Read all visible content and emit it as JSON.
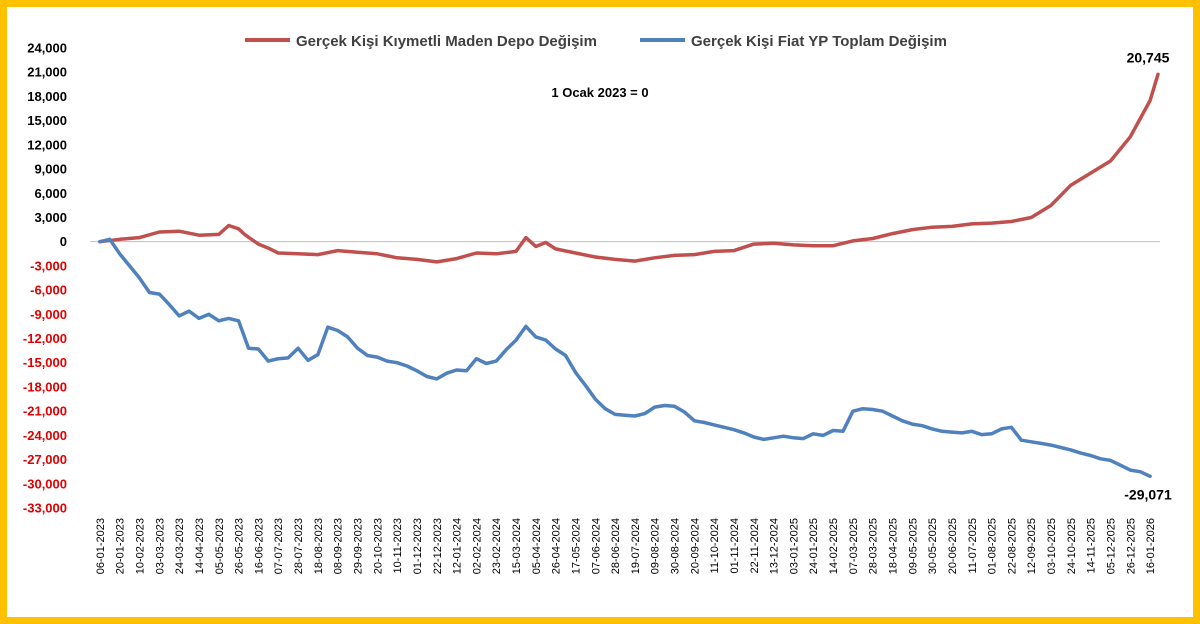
{
  "chart_data": {
    "type": "line",
    "title": "",
    "annotation": "1 Ocak 2023 = 0",
    "ylim": [
      -33000,
      24000
    ],
    "y_ticks": [
      24000,
      21000,
      18000,
      15000,
      12000,
      9000,
      6000,
      3000,
      0,
      -3000,
      -6000,
      -9000,
      -12000,
      -15000,
      -18000,
      -21000,
      -24000,
      -27000,
      -30000,
      -33000
    ],
    "y_tick_labels": [
      "24,000",
      "21,000",
      "18,000",
      "15,000",
      "12,000",
      "9,000",
      "6,000",
      "3,000",
      "0",
      "-3,000",
      "-6,000",
      "-9,000",
      "-12,000",
      "-15,000",
      "-18,000",
      "-21,000",
      "-24,000",
      "-27,000",
      "-30,000",
      "-33,000"
    ],
    "x_tick_labels": [
      "06-01-2023",
      "20-01-2023",
      "10-02-2023",
      "03-03-2023",
      "24-03-2023",
      "14-04-2023",
      "05-05-2023",
      "26-05-2023",
      "16-06-2023",
      "07-07-2023",
      "28-07-2023",
      "18-08-2023",
      "08-09-2023",
      "29-09-2023",
      "20-10-2023",
      "10-11-2023",
      "01-12-2023",
      "22-12-2023",
      "12-01-2024",
      "02-02-2024",
      "23-02-2024",
      "15-03-2024",
      "05-04-2024",
      "26-04-2024",
      "17-05-2024",
      "07-06-2024",
      "28-06-2024",
      "19-07-2024",
      "09-08-2024",
      "30-08-2024",
      "20-09-2024",
      "11-10-2024",
      "01-11-2024",
      "22-11-2024",
      "13-12-2024",
      "03-01-2025",
      "24-01-2025",
      "14-02-2025",
      "07-03-2025",
      "28-03-2025",
      "18-04-2025",
      "09-05-2025",
      "30-05-2025",
      "20-06-2025",
      "11-07-2025",
      "01-08-2025",
      "22-08-2025",
      "12-09-2025",
      "03-10-2025",
      "24-10-2025",
      "14-11-2025",
      "05-12-2025",
      "26-12-2025",
      "16-01-2026"
    ],
    "legend_position": "top",
    "series": [
      {
        "name": "Gerçek Kişi Kıymetli Maden Depo Değişim",
        "color": "#c0504d",
        "end_label": "20,745",
        "points": [
          [
            0,
            0
          ],
          [
            1,
            300
          ],
          [
            2,
            500
          ],
          [
            3,
            1200
          ],
          [
            4,
            1300
          ],
          [
            5,
            800
          ],
          [
            6,
            900
          ],
          [
            6.5,
            2000
          ],
          [
            7,
            1600
          ],
          [
            7.3,
            900
          ],
          [
            8,
            -300
          ],
          [
            8.5,
            -800
          ],
          [
            9,
            -1400
          ],
          [
            10,
            -1500
          ],
          [
            11,
            -1600
          ],
          [
            12,
            -1100
          ],
          [
            13,
            -1300
          ],
          [
            14,
            -1500
          ],
          [
            15,
            -2000
          ],
          [
            16,
            -2200
          ],
          [
            17,
            -2500
          ],
          [
            18,
            -2100
          ],
          [
            19,
            -1400
          ],
          [
            20,
            -1500
          ],
          [
            21,
            -1200
          ],
          [
            21.5,
            500
          ],
          [
            22,
            -600
          ],
          [
            22.5,
            -100
          ],
          [
            23,
            -900
          ],
          [
            24,
            -1400
          ],
          [
            25,
            -1900
          ],
          [
            26,
            -2200
          ],
          [
            27,
            -2400
          ],
          [
            28,
            -2000
          ],
          [
            29,
            -1700
          ],
          [
            30,
            -1600
          ],
          [
            31,
            -1200
          ],
          [
            32,
            -1100
          ],
          [
            33,
            -300
          ],
          [
            34,
            -200
          ],
          [
            35,
            -400
          ],
          [
            36,
            -500
          ],
          [
            37,
            -500
          ],
          [
            38,
            100
          ],
          [
            39,
            400
          ],
          [
            40,
            1000
          ],
          [
            41,
            1500
          ],
          [
            42,
            1800
          ],
          [
            43,
            1900
          ],
          [
            44,
            2200
          ],
          [
            45,
            2300
          ],
          [
            46,
            2500
          ],
          [
            47,
            3000
          ],
          [
            48,
            4500
          ],
          [
            49,
            7000
          ],
          [
            50,
            8500
          ],
          [
            51,
            10000
          ],
          [
            52,
            13000
          ],
          [
            53,
            17500
          ],
          [
            53.4,
            20745
          ]
        ]
      },
      {
        "name": "Gerçek Kişi Fiat YP Toplam Değişim",
        "color": "#4f81bd",
        "end_label": "-29,071",
        "points": [
          [
            0,
            0
          ],
          [
            0.5,
            300
          ],
          [
            1,
            -1500
          ],
          [
            1.5,
            -3000
          ],
          [
            2,
            -4500
          ],
          [
            2.5,
            -6300
          ],
          [
            3,
            -6500
          ],
          [
            3.5,
            -7800
          ],
          [
            4,
            -9200
          ],
          [
            4.5,
            -8600
          ],
          [
            5,
            -9500
          ],
          [
            5.5,
            -9000
          ],
          [
            6,
            -9800
          ],
          [
            6.5,
            -9500
          ],
          [
            7,
            -9800
          ],
          [
            7.5,
            -13200
          ],
          [
            8,
            -13300
          ],
          [
            8.5,
            -14800
          ],
          [
            9,
            -14500
          ],
          [
            9.5,
            -14400
          ],
          [
            10,
            -13200
          ],
          [
            10.5,
            -14700
          ],
          [
            11,
            -14000
          ],
          [
            11.5,
            -10600
          ],
          [
            12,
            -11000
          ],
          [
            12.5,
            -11800
          ],
          [
            13,
            -13200
          ],
          [
            13.5,
            -14100
          ],
          [
            14,
            -14300
          ],
          [
            14.5,
            -14800
          ],
          [
            15,
            -15000
          ],
          [
            15.5,
            -15400
          ],
          [
            16,
            -16000
          ],
          [
            16.5,
            -16700
          ],
          [
            17,
            -17000
          ],
          [
            17.5,
            -16300
          ],
          [
            18,
            -15900
          ],
          [
            18.5,
            -16000
          ],
          [
            19,
            -14500
          ],
          [
            19.5,
            -15100
          ],
          [
            20,
            -14800
          ],
          [
            20.5,
            -13400
          ],
          [
            21,
            -12200
          ],
          [
            21.5,
            -10500
          ],
          [
            22,
            -11800
          ],
          [
            22.5,
            -12200
          ],
          [
            23,
            -13300
          ],
          [
            23.5,
            -14100
          ],
          [
            24,
            -16200
          ],
          [
            24.5,
            -17800
          ],
          [
            25,
            -19500
          ],
          [
            25.5,
            -20700
          ],
          [
            26,
            -21400
          ],
          [
            26.5,
            -21500
          ],
          [
            27,
            -21600
          ],
          [
            27.5,
            -21300
          ],
          [
            28,
            -20500
          ],
          [
            28.5,
            -20300
          ],
          [
            29,
            -20400
          ],
          [
            29.5,
            -21100
          ],
          [
            30,
            -22200
          ],
          [
            30.5,
            -22400
          ],
          [
            31,
            -22700
          ],
          [
            31.5,
            -23000
          ],
          [
            32,
            -23300
          ],
          [
            32.5,
            -23700
          ],
          [
            33,
            -24200
          ],
          [
            33.5,
            -24500
          ],
          [
            34,
            -24300
          ],
          [
            34.5,
            -24100
          ],
          [
            35,
            -24300
          ],
          [
            35.5,
            -24400
          ],
          [
            36,
            -23800
          ],
          [
            36.5,
            -24000
          ],
          [
            37,
            -23400
          ],
          [
            37.5,
            -23500
          ],
          [
            38,
            -21000
          ],
          [
            38.5,
            -20700
          ],
          [
            39,
            -20800
          ],
          [
            39.5,
            -21000
          ],
          [
            40,
            -21600
          ],
          [
            40.5,
            -22200
          ],
          [
            41,
            -22600
          ],
          [
            41.5,
            -22800
          ],
          [
            42,
            -23200
          ],
          [
            42.5,
            -23500
          ],
          [
            43,
            -23600
          ],
          [
            43.5,
            -23700
          ],
          [
            44,
            -23500
          ],
          [
            44.5,
            -23900
          ],
          [
            45,
            -23800
          ],
          [
            45.5,
            -23200
          ],
          [
            46,
            -23000
          ],
          [
            46.5,
            -24600
          ],
          [
            47,
            -24800
          ],
          [
            47.5,
            -25000
          ],
          [
            48,
            -25200
          ],
          [
            48.5,
            -25500
          ],
          [
            49,
            -25800
          ],
          [
            49.5,
            -26200
          ],
          [
            50,
            -26500
          ],
          [
            50.5,
            -26900
          ],
          [
            51,
            -27100
          ],
          [
            51.5,
            -27700
          ],
          [
            52,
            -28300
          ],
          [
            52.5,
            -28500
          ],
          [
            53,
            -29071
          ]
        ]
      }
    ]
  }
}
